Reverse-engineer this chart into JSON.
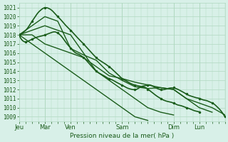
{
  "title": "",
  "xlabel": "Pression niveau de la mer( hPa )",
  "ylabel": "",
  "ylim": [
    1008.5,
    1021.5
  ],
  "yticks": [
    1009,
    1010,
    1011,
    1012,
    1013,
    1014,
    1015,
    1016,
    1017,
    1018,
    1019,
    1020,
    1021
  ],
  "day_labels": [
    "Jeu",
    "Mar",
    "Ven",
    "Sam",
    "Dim",
    "Lun"
  ],
  "day_positions": [
    0,
    24,
    48,
    96,
    144,
    168
  ],
  "background_color": "#d8f0e8",
  "grid_color": "#b0d8c0",
  "line_color": "#1a5c1a",
  "text_color": "#1a5c1a",
  "total_hours": 192,
  "series": [
    {
      "points": [
        [
          0,
          1018
        ],
        [
          6,
          1017.5
        ],
        [
          12,
          1017
        ],
        [
          18,
          1016.5
        ],
        [
          24,
          1016
        ],
        [
          30,
          1015.5
        ],
        [
          36,
          1015
        ],
        [
          42,
          1014.5
        ],
        [
          48,
          1014
        ],
        [
          54,
          1013.5
        ],
        [
          60,
          1013
        ],
        [
          66,
          1012.5
        ],
        [
          72,
          1012
        ],
        [
          78,
          1011.5
        ],
        [
          84,
          1011
        ],
        [
          90,
          1010.5
        ],
        [
          96,
          1010
        ],
        [
          102,
          1009.5
        ],
        [
          108,
          1009
        ],
        [
          114,
          1008.8
        ],
        [
          120,
          1008.6
        ]
      ],
      "style": "straight",
      "lw": 1.0
    },
    {
      "points": [
        [
          0,
          1018
        ],
        [
          12,
          1018.5
        ],
        [
          24,
          1019
        ],
        [
          36,
          1018.5
        ],
        [
          48,
          1018
        ],
        [
          60,
          1016
        ],
        [
          72,
          1014
        ],
        [
          84,
          1013
        ],
        [
          96,
          1012
        ],
        [
          108,
          1011
        ],
        [
          120,
          1010
        ],
        [
          132,
          1009.5
        ],
        [
          144,
          1009.2
        ]
      ],
      "style": "straight",
      "lw": 1.0
    },
    {
      "points": [
        [
          0,
          1018
        ],
        [
          12,
          1019.5
        ],
        [
          24,
          1021
        ],
        [
          36,
          1020
        ],
        [
          48,
          1018.5
        ],
        [
          60,
          1017
        ],
        [
          72,
          1015.5
        ],
        [
          84,
          1014.5
        ],
        [
          96,
          1013.2
        ],
        [
          108,
          1012.5
        ],
        [
          120,
          1012
        ],
        [
          132,
          1011
        ],
        [
          144,
          1010.5
        ],
        [
          156,
          1010
        ],
        [
          168,
          1009.5
        ]
      ],
      "style": "wiggly",
      "lw": 1.2
    },
    {
      "points": [
        [
          0,
          1018
        ],
        [
          12,
          1019
        ],
        [
          24,
          1020
        ],
        [
          36,
          1019.5
        ],
        [
          48,
          1016.5
        ],
        [
          60,
          1015.8
        ],
        [
          72,
          1015.2
        ],
        [
          84,
          1013.8
        ],
        [
          96,
          1013
        ],
        [
          108,
          1012.3
        ],
        [
          120,
          1012.1
        ],
        [
          132,
          1012.2
        ],
        [
          144,
          1012
        ],
        [
          156,
          1011
        ],
        [
          168,
          1010
        ],
        [
          180,
          1009.5
        ]
      ],
      "style": "straight",
      "lw": 1.0
    },
    {
      "points": [
        [
          0,
          1018
        ],
        [
          6,
          1017.2
        ],
        [
          12,
          1017.5
        ],
        [
          24,
          1018
        ],
        [
          36,
          1018.2
        ],
        [
          48,
          1016.5
        ],
        [
          60,
          1015.5
        ],
        [
          72,
          1014
        ],
        [
          84,
          1013.2
        ],
        [
          96,
          1012.5
        ],
        [
          108,
          1012
        ],
        [
          120,
          1012.5
        ],
        [
          132,
          1012
        ],
        [
          144,
          1012.2
        ],
        [
          156,
          1011.5
        ],
        [
          168,
          1011
        ],
        [
          180,
          1010.5
        ],
        [
          192,
          1009
        ]
      ],
      "style": "wiggly",
      "lw": 1.2
    },
    {
      "points": [
        [
          0,
          1018
        ],
        [
          12,
          1018
        ],
        [
          24,
          1017
        ],
        [
          36,
          1016.5
        ],
        [
          48,
          1016
        ],
        [
          60,
          1015.5
        ],
        [
          72,
          1014.5
        ],
        [
          84,
          1013.5
        ],
        [
          96,
          1013.2
        ],
        [
          108,
          1012.8
        ],
        [
          120,
          1012.5
        ],
        [
          132,
          1012.2
        ],
        [
          144,
          1012
        ],
        [
          156,
          1011
        ],
        [
          168,
          1010.5
        ],
        [
          180,
          1010
        ],
        [
          192,
          1009.2
        ]
      ],
      "style": "straight",
      "lw": 1.0
    }
  ]
}
